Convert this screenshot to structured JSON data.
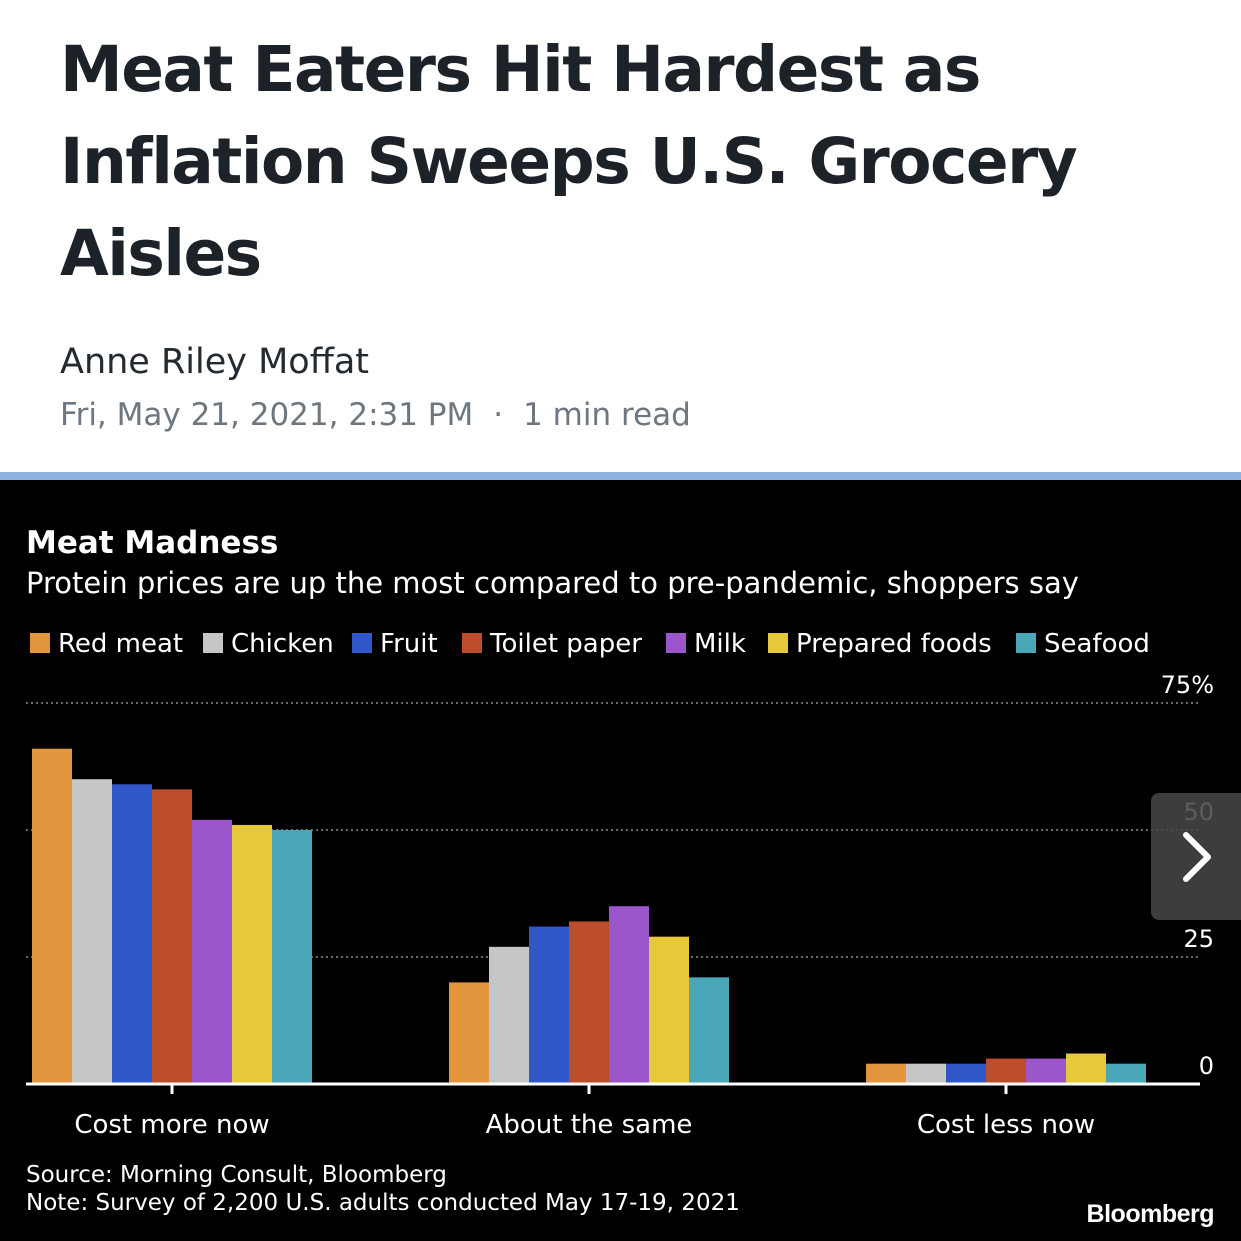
{
  "article": {
    "headline": "Meat Eaters Hit Hardest as Inflation Sweeps U.S. Grocery Aisles",
    "author": "Anne Riley Moffat",
    "date": "Fri, May 21, 2021, 2:31 PM",
    "separator": "·",
    "read_time": "1 min read"
  },
  "colors": {
    "rule": "#8fb3e0",
    "chart_bg": "#000000"
  },
  "chart_data": {
    "type": "bar",
    "title": "Meat Madness",
    "subtitle": "Protein prices are up the most compared to pre-pandemic, shoppers say",
    "categories": [
      "Cost more now",
      "About the same",
      "Cost less now"
    ],
    "series": [
      {
        "name": "Red meat",
        "color": "#e4963e",
        "values": [
          66,
          20,
          4
        ]
      },
      {
        "name": "Chicken",
        "color": "#c6c6c6",
        "values": [
          60,
          27,
          4
        ]
      },
      {
        "name": "Fruit",
        "color": "#2f57c8",
        "values": [
          59,
          31,
          4
        ]
      },
      {
        "name": "Toilet paper",
        "color": "#bb4d2a",
        "values": [
          58,
          32,
          5
        ]
      },
      {
        "name": "Milk",
        "color": "#9b56cc",
        "values": [
          52,
          35,
          5
        ]
      },
      {
        "name": "Prepared foods",
        "color": "#e6c93b",
        "values": [
          51,
          29,
          6
        ]
      },
      {
        "name": "Seafood",
        "color": "#4aa7b7",
        "values": [
          50,
          21,
          4
        ]
      }
    ],
    "ylim": [
      0,
      75
    ],
    "yticks": [
      "0",
      "25",
      "50",
      "75%"
    ],
    "grid": true,
    "legend_position": "top",
    "source": "Source: Morning Consult, Bloomberg",
    "note": "Note: Survey of 2,200 U.S. adults conducted May 17-19, 2021",
    "brand": "Bloomberg"
  },
  "gallery": {
    "next_icon": "chevron-right-icon"
  }
}
